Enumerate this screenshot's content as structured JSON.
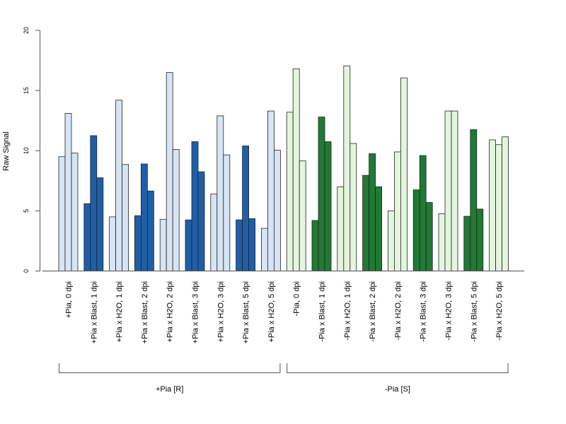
{
  "chart_data": {
    "type": "bar",
    "title": "",
    "ylabel": "Raw Signal",
    "xlabel": "",
    "ylim": [
      0,
      20
    ],
    "yticks": [
      "0",
      "5",
      "10",
      "15",
      "20"
    ],
    "grid": false,
    "categories": [
      "+Pia, 0 dpi",
      "+Pia x Blast, 1 dpi",
      "+Pia x H2O, 1 dpi",
      "+Pia x Blast, 2 dpi",
      "+Pia x H2O, 2 dpi",
      "+Pia x Blast, 3 dpi",
      "+Pia x H2O, 3 dpi",
      "+Pia x Blast, 5 dpi",
      "+Pia x H2O, 5 dpi",
      "-Pia, 0 dpi",
      "-Pia x Blast, 1 dpi",
      "-Pia x H2O, 1 dpi",
      "-Pia x Blast, 2 dpi",
      "-Pia x H2O, 2 dpi",
      "-Pia x Blast, 3 dpi",
      "-Pia x H2O, 3 dpi",
      "-Pia x Blast, 5 dpi",
      "-Pia x H2O, 5 dpi"
    ],
    "category_colors": [
      "#d6e4f4",
      "#1f5fa9",
      "#d6e4f4",
      "#1f5fa9",
      "#d6e4f4",
      "#1f5fa9",
      "#d6e4f4",
      "#1f5fa9",
      "#d6e4f4",
      "#e4f5de",
      "#207a34",
      "#e4f5de",
      "#207a34",
      "#e4f5de",
      "#207a34",
      "#e4f5de",
      "#207a34",
      "#e4f5de"
    ],
    "values": [
      [
        9.5,
        13.1,
        9.8
      ],
      [
        5.6,
        11.25,
        7.75
      ],
      [
        4.5,
        14.2,
        8.85
      ],
      [
        4.6,
        8.9,
        6.65
      ],
      [
        4.3,
        16.5,
        10.1
      ],
      [
        4.25,
        10.75,
        8.25
      ],
      [
        6.4,
        12.9,
        9.65
      ],
      [
        4.25,
        10.4,
        4.35
      ],
      [
        3.55,
        13.3,
        10.05
      ],
      [
        13.2,
        16.8,
        9.15
      ],
      [
        4.2,
        12.8,
        10.75
      ],
      [
        7.0,
        17.05,
        10.6
      ],
      [
        7.95,
        9.75,
        7.0
      ],
      [
        5.0,
        9.9,
        16.05
      ],
      [
        6.75,
        9.6,
        5.7
      ],
      [
        4.75,
        13.3,
        13.3
      ],
      [
        4.55,
        11.75,
        5.15
      ],
      [
        10.9,
        10.5,
        11.15
      ]
    ],
    "groups": [
      {
        "label": "+Pia [R]",
        "start": 0,
        "end": 8
      },
      {
        "label": "-Pia [S]",
        "start": 9,
        "end": 17
      }
    ]
  }
}
